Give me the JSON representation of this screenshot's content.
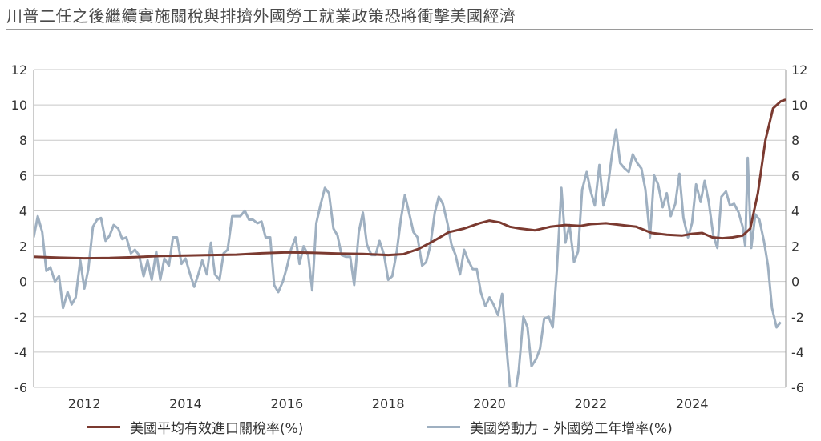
{
  "title": "川普二任之後繼續實施關稅與排擠外國勞工就業政策恐將衝擊美國經濟",
  "chart_data": {
    "type": "line",
    "title": "川普二任之後繼續實施關稅與排擠外國勞工就業政策恐將衝擊美國經濟",
    "xlabel": "",
    "ylabel": "",
    "xlim": [
      2011.0,
      2025.85
    ],
    "ylim": [
      -6,
      12
    ],
    "y_right_lim": [
      -6,
      12
    ],
    "x_ticks": [
      "2012",
      "2014",
      "2016",
      "2018",
      "2020",
      "2022",
      "2024"
    ],
    "y_ticks": [
      "12",
      "10",
      "8",
      "6",
      "4",
      "2",
      "0",
      "-2",
      "-4",
      "-6"
    ],
    "grid": true,
    "legend_position": "bottom",
    "series": [
      {
        "name": "美國平均有效進口關稅率(%)",
        "color": "#7b3a30",
        "axis": "left",
        "points": [
          [
            2011.0,
            1.4
          ],
          [
            2011.5,
            1.35
          ],
          [
            2012.0,
            1.32
          ],
          [
            2012.5,
            1.33
          ],
          [
            2013.0,
            1.38
          ],
          [
            2013.5,
            1.45
          ],
          [
            2014.0,
            1.47
          ],
          [
            2014.5,
            1.5
          ],
          [
            2015.0,
            1.52
          ],
          [
            2015.5,
            1.6
          ],
          [
            2016.0,
            1.65
          ],
          [
            2016.5,
            1.63
          ],
          [
            2017.0,
            1.58
          ],
          [
            2017.5,
            1.56
          ],
          [
            2018.0,
            1.5
          ],
          [
            2018.3,
            1.55
          ],
          [
            2018.6,
            1.85
          ],
          [
            2018.9,
            2.3
          ],
          [
            2019.2,
            2.8
          ],
          [
            2019.5,
            3.0
          ],
          [
            2019.8,
            3.3
          ],
          [
            2020.0,
            3.45
          ],
          [
            2020.2,
            3.35
          ],
          [
            2020.4,
            3.1
          ],
          [
            2020.6,
            3.0
          ],
          [
            2020.9,
            2.9
          ],
          [
            2021.2,
            3.1
          ],
          [
            2021.5,
            3.2
          ],
          [
            2021.8,
            3.15
          ],
          [
            2022.0,
            3.25
          ],
          [
            2022.3,
            3.3
          ],
          [
            2022.6,
            3.2
          ],
          [
            2022.9,
            3.1
          ],
          [
            2023.2,
            2.75
          ],
          [
            2023.5,
            2.65
          ],
          [
            2023.8,
            2.6
          ],
          [
            2024.0,
            2.7
          ],
          [
            2024.2,
            2.75
          ],
          [
            2024.4,
            2.5
          ],
          [
            2024.6,
            2.45
          ],
          [
            2024.8,
            2.5
          ],
          [
            2025.0,
            2.6
          ],
          [
            2025.15,
            3.0
          ],
          [
            2025.3,
            5.0
          ],
          [
            2025.45,
            8.0
          ],
          [
            2025.6,
            9.8
          ],
          [
            2025.75,
            10.2
          ],
          [
            2025.85,
            10.3
          ]
        ]
      },
      {
        "name": "美國勞動力 – 外國勞工年增率(%)",
        "color": "#9fb0c1",
        "axis": "right",
        "points": [
          [
            2011.0,
            2.5
          ],
          [
            2011.08,
            3.7
          ],
          [
            2011.17,
            2.8
          ],
          [
            2011.25,
            0.6
          ],
          [
            2011.33,
            0.8
          ],
          [
            2011.42,
            0.0
          ],
          [
            2011.5,
            0.3
          ],
          [
            2011.58,
            -1.5
          ],
          [
            2011.67,
            -0.6
          ],
          [
            2011.75,
            -1.3
          ],
          [
            2011.83,
            -0.9
          ],
          [
            2011.92,
            1.2
          ],
          [
            2012.0,
            -0.4
          ],
          [
            2012.08,
            0.7
          ],
          [
            2012.17,
            3.1
          ],
          [
            2012.25,
            3.5
          ],
          [
            2012.33,
            3.6
          ],
          [
            2012.42,
            2.3
          ],
          [
            2012.5,
            2.6
          ],
          [
            2012.58,
            3.2
          ],
          [
            2012.67,
            3.0
          ],
          [
            2012.75,
            2.4
          ],
          [
            2012.83,
            2.5
          ],
          [
            2012.92,
            1.6
          ],
          [
            2013.0,
            1.8
          ],
          [
            2013.08,
            1.5
          ],
          [
            2013.17,
            0.3
          ],
          [
            2013.25,
            1.2
          ],
          [
            2013.33,
            0.1
          ],
          [
            2013.42,
            1.7
          ],
          [
            2013.5,
            0.1
          ],
          [
            2013.58,
            1.3
          ],
          [
            2013.67,
            0.9
          ],
          [
            2013.75,
            2.5
          ],
          [
            2013.83,
            2.5
          ],
          [
            2013.92,
            1.0
          ],
          [
            2014.0,
            1.3
          ],
          [
            2014.08,
            0.5
          ],
          [
            2014.17,
            -0.3
          ],
          [
            2014.25,
            0.4
          ],
          [
            2014.33,
            1.2
          ],
          [
            2014.42,
            0.4
          ],
          [
            2014.5,
            2.2
          ],
          [
            2014.58,
            0.4
          ],
          [
            2014.67,
            0.1
          ],
          [
            2014.75,
            1.6
          ],
          [
            2014.83,
            1.8
          ],
          [
            2014.92,
            3.7
          ],
          [
            2015.0,
            3.7
          ],
          [
            2015.08,
            3.7
          ],
          [
            2015.17,
            4.0
          ],
          [
            2015.25,
            3.5
          ],
          [
            2015.33,
            3.5
          ],
          [
            2015.42,
            3.3
          ],
          [
            2015.5,
            3.4
          ],
          [
            2015.58,
            2.5
          ],
          [
            2015.67,
            2.5
          ],
          [
            2015.75,
            -0.2
          ],
          [
            2015.83,
            -0.6
          ],
          [
            2015.92,
            0.0
          ],
          [
            2016.0,
            0.8
          ],
          [
            2016.08,
            1.8
          ],
          [
            2016.17,
            2.5
          ],
          [
            2016.25,
            1.0
          ],
          [
            2016.33,
            2.0
          ],
          [
            2016.42,
            1.5
          ],
          [
            2016.5,
            -0.5
          ],
          [
            2016.58,
            3.3
          ],
          [
            2016.67,
            4.4
          ],
          [
            2016.75,
            5.3
          ],
          [
            2016.83,
            5.0
          ],
          [
            2016.92,
            3.0
          ],
          [
            2017.0,
            2.6
          ],
          [
            2017.08,
            1.5
          ],
          [
            2017.17,
            1.4
          ],
          [
            2017.25,
            1.4
          ],
          [
            2017.33,
            -0.2
          ],
          [
            2017.42,
            2.8
          ],
          [
            2017.5,
            3.9
          ],
          [
            2017.58,
            2.1
          ],
          [
            2017.67,
            1.5
          ],
          [
            2017.75,
            1.5
          ],
          [
            2017.83,
            2.3
          ],
          [
            2017.92,
            1.5
          ],
          [
            2018.0,
            0.1
          ],
          [
            2018.08,
            0.3
          ],
          [
            2018.17,
            1.7
          ],
          [
            2018.25,
            3.5
          ],
          [
            2018.33,
            4.9
          ],
          [
            2018.42,
            3.8
          ],
          [
            2018.5,
            2.8
          ],
          [
            2018.58,
            2.5
          ],
          [
            2018.67,
            0.9
          ],
          [
            2018.75,
            1.1
          ],
          [
            2018.83,
            2.0
          ],
          [
            2018.92,
            3.9
          ],
          [
            2019.0,
            4.8
          ],
          [
            2019.08,
            4.4
          ],
          [
            2019.17,
            3.3
          ],
          [
            2019.25,
            2.1
          ],
          [
            2019.33,
            1.5
          ],
          [
            2019.42,
            0.4
          ],
          [
            2019.5,
            1.8
          ],
          [
            2019.58,
            1.2
          ],
          [
            2019.67,
            0.7
          ],
          [
            2019.75,
            0.7
          ],
          [
            2019.83,
            -0.6
          ],
          [
            2019.92,
            -1.4
          ],
          [
            2020.0,
            -0.9
          ],
          [
            2020.08,
            -1.3
          ],
          [
            2020.17,
            -1.9
          ],
          [
            2020.25,
            -0.7
          ],
          [
            2020.33,
            -3.5
          ],
          [
            2020.42,
            -6.5
          ],
          [
            2020.5,
            -6.5
          ],
          [
            2020.58,
            -5.0
          ],
          [
            2020.67,
            -2.0
          ],
          [
            2020.75,
            -2.6
          ],
          [
            2020.83,
            -4.8
          ],
          [
            2020.92,
            -4.4
          ],
          [
            2021.0,
            -3.8
          ],
          [
            2021.08,
            -2.1
          ],
          [
            2021.17,
            -2.0
          ],
          [
            2021.25,
            -2.6
          ],
          [
            2021.33,
            0.6
          ],
          [
            2021.42,
            5.3
          ],
          [
            2021.5,
            2.2
          ],
          [
            2021.58,
            3.2
          ],
          [
            2021.67,
            1.1
          ],
          [
            2021.75,
            1.7
          ],
          [
            2021.83,
            5.2
          ],
          [
            2021.92,
            6.2
          ],
          [
            2022.0,
            5.1
          ],
          [
            2022.08,
            4.3
          ],
          [
            2022.17,
            6.6
          ],
          [
            2022.25,
            4.3
          ],
          [
            2022.33,
            5.2
          ],
          [
            2022.42,
            7.2
          ],
          [
            2022.5,
            8.6
          ],
          [
            2022.58,
            6.7
          ],
          [
            2022.67,
            6.4
          ],
          [
            2022.75,
            6.2
          ],
          [
            2022.83,
            7.2
          ],
          [
            2022.92,
            6.7
          ],
          [
            2023.0,
            6.4
          ],
          [
            2023.08,
            5.2
          ],
          [
            2023.17,
            2.5
          ],
          [
            2023.25,
            6.0
          ],
          [
            2023.33,
            5.5
          ],
          [
            2023.42,
            4.2
          ],
          [
            2023.5,
            5.0
          ],
          [
            2023.58,
            3.7
          ],
          [
            2023.67,
            4.4
          ],
          [
            2023.75,
            6.1
          ],
          [
            2023.83,
            3.6
          ],
          [
            2023.92,
            2.5
          ],
          [
            2024.0,
            3.3
          ],
          [
            2024.08,
            5.5
          ],
          [
            2024.17,
            4.5
          ],
          [
            2024.25,
            5.7
          ],
          [
            2024.33,
            4.5
          ],
          [
            2024.42,
            2.6
          ],
          [
            2024.5,
            1.9
          ],
          [
            2024.58,
            4.8
          ],
          [
            2024.67,
            5.1
          ],
          [
            2024.75,
            4.3
          ],
          [
            2024.83,
            4.4
          ],
          [
            2024.92,
            3.9
          ],
          [
            2025.0,
            3.1
          ],
          [
            2025.05,
            2.0
          ],
          [
            2025.1,
            7.0
          ],
          [
            2025.17,
            1.9
          ],
          [
            2025.25,
            3.8
          ],
          [
            2025.33,
            3.5
          ],
          [
            2025.42,
            2.3
          ],
          [
            2025.5,
            0.9
          ],
          [
            2025.58,
            -1.5
          ],
          [
            2025.67,
            -2.6
          ],
          [
            2025.75,
            -2.3
          ]
        ]
      }
    ]
  }
}
